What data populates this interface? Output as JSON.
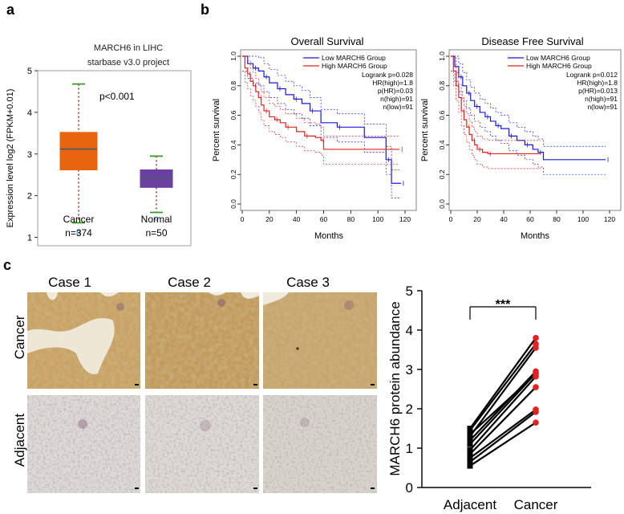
{
  "panels": {
    "a": {
      "letter": "a"
    },
    "b": {
      "letter": "b"
    },
    "c": {
      "letter": "c"
    }
  },
  "colors": {
    "cancer_box": "#e8640e",
    "normal_box": "#6a3fa0",
    "low_group": "#1a1ad6",
    "high_group": "#e82020",
    "whisker": "#3a9a2a",
    "dot": "#e82020"
  },
  "chart_data": [
    {
      "id": "boxplot",
      "type": "box",
      "title": "MARCH6 in LIHC",
      "subtitle": "starbase v3.0 project",
      "ylabel": "Expression level log2 (FPKM+0.01)",
      "ylim": [
        0.8,
        5.0
      ],
      "yticks": [
        1,
        2,
        3,
        4,
        5
      ],
      "annotation": "p<0.001",
      "groups": [
        {
          "label": "Cancer",
          "n_label": "n=374",
          "min": 1.35,
          "q1": 2.62,
          "median": 3.12,
          "q3": 3.52,
          "max": 4.68,
          "outliers": [
            1.12
          ]
        },
        {
          "label": "Normal",
          "n_label": "n=50",
          "min": 1.6,
          "q1": 2.2,
          "median": 2.42,
          "q3": 2.62,
          "max": 2.95,
          "outliers": [
            1.45
          ]
        }
      ]
    },
    {
      "id": "os",
      "type": "line",
      "title": "Overall Survival",
      "xlabel": "Months",
      "ylabel": "Percent survival",
      "xlim": [
        0,
        120
      ],
      "ylim": [
        0,
        1
      ],
      "xticks": [
        0,
        20,
        40,
        60,
        80,
        100,
        120
      ],
      "yticks": [
        0.0,
        0.2,
        0.4,
        0.6,
        0.8,
        1.0
      ],
      "legend": [
        "Low MARCH6 Group",
        "High MARCH6 Group"
      ],
      "stats": [
        "Logrank p=0.028",
        "HR(high)=1.8",
        "p(HR)=0.03",
        "n(high)=91",
        "n(low)=91"
      ],
      "series": [
        {
          "name": "Low MARCH6 Group",
          "x": [
            0,
            4,
            8,
            12,
            16,
            20,
            26,
            32,
            38,
            44,
            50,
            58,
            70,
            90,
            106,
            110,
            117
          ],
          "y": [
            1.0,
            0.95,
            0.92,
            0.9,
            0.86,
            0.82,
            0.78,
            0.74,
            0.71,
            0.68,
            0.63,
            0.55,
            0.52,
            0.45,
            0.3,
            0.14,
            0.14
          ]
        },
        {
          "name": "High MARCH6 Group",
          "x": [
            0,
            2,
            4,
            6,
            8,
            10,
            12,
            14,
            16,
            20,
            24,
            28,
            32,
            40,
            46,
            54,
            58,
            60,
            116
          ],
          "y": [
            1.0,
            0.92,
            0.88,
            0.83,
            0.8,
            0.76,
            0.72,
            0.67,
            0.63,
            0.59,
            0.57,
            0.55,
            0.52,
            0.49,
            0.46,
            0.45,
            0.43,
            0.37,
            0.37
          ]
        }
      ]
    },
    {
      "id": "dfs",
      "type": "line",
      "title": "Disease Free Survival",
      "xlabel": "Months",
      "ylabel": "Percent survival",
      "xlim": [
        0,
        120
      ],
      "ylim": [
        0,
        1
      ],
      "xticks": [
        0,
        20,
        40,
        60,
        80,
        100,
        120
      ],
      "yticks": [
        0.0,
        0.2,
        0.4,
        0.6,
        0.8,
        1.0
      ],
      "legend": [
        "Low MARCH6 Group",
        "High MARCH6 Group"
      ],
      "stats": [
        "Logrank p=0.012",
        "HR(high)=1.8",
        "p(HR)=0.013",
        "n(high)=91",
        "n(low)=91"
      ],
      "series": [
        {
          "name": "Low MARCH6 Group",
          "x": [
            0,
            3,
            6,
            9,
            12,
            15,
            18,
            22,
            26,
            30,
            34,
            38,
            44,
            50,
            56,
            62,
            66,
            70,
            117
          ],
          "y": [
            1.0,
            0.93,
            0.86,
            0.8,
            0.75,
            0.7,
            0.66,
            0.62,
            0.59,
            0.56,
            0.53,
            0.51,
            0.46,
            0.43,
            0.4,
            0.37,
            0.35,
            0.3,
            0.3
          ]
        },
        {
          "name": "High MARCH6 Group",
          "x": [
            0,
            2,
            4,
            6,
            8,
            10,
            12,
            14,
            16,
            18,
            20,
            24,
            28,
            68
          ],
          "y": [
            1.0,
            0.9,
            0.8,
            0.72,
            0.63,
            0.57,
            0.52,
            0.47,
            0.43,
            0.4,
            0.37,
            0.35,
            0.34,
            0.34
          ]
        }
      ]
    },
    {
      "id": "paired",
      "type": "scatter",
      "ylabel": "MARCH6 protein abundance",
      "ylim": [
        0,
        5
      ],
      "yticks": [
        0,
        1,
        2,
        3,
        4,
        5
      ],
      "categories": [
        "Adjacent",
        "Cancer"
      ],
      "annotation": "***",
      "pairs": [
        [
          1.5,
          3.8
        ],
        [
          1.45,
          3.65
        ],
        [
          1.3,
          3.55
        ],
        [
          1.2,
          2.95
        ],
        [
          1.1,
          2.9
        ],
        [
          0.95,
          2.82
        ],
        [
          0.85,
          2.55
        ],
        [
          0.75,
          1.98
        ],
        [
          0.65,
          1.92
        ],
        [
          0.55,
          1.65
        ],
        [
          1.35,
          2.88
        ]
      ]
    }
  ],
  "ihc": {
    "cases": [
      "Case 1",
      "Case 2",
      "Case 3"
    ],
    "rows": [
      "Cancer",
      "Adjacent"
    ]
  }
}
